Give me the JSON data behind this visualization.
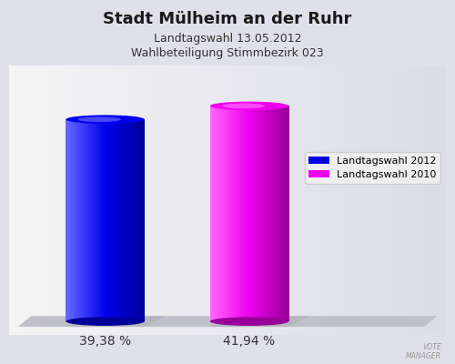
{
  "title": "Stadt Mülheim an der Ruhr",
  "subtitle1": "Landtagswahl 13.05.2012",
  "subtitle2": "Wahlbeteiligung Stimmbezirk 023",
  "values": [
    39.38,
    41.94
  ],
  "labels": [
    "39,38 %",
    "41,94 %"
  ],
  "bar_colors": [
    "#0000ee",
    "#ee00ee"
  ],
  "bar_dark_colors": [
    "#000099",
    "#990099"
  ],
  "bar_light_colors": [
    "#6666ff",
    "#ff66ff"
  ],
  "legend_labels": [
    "Landtagswahl 2012",
    "Landtagswahl 2010"
  ],
  "bg_top": "#dcdce8",
  "bg_bottom": "#f5f5f5",
  "floor_color": "#c0c0c8",
  "shadow_color": "#b0b0b8",
  "title_fontsize": 13,
  "subtitle_fontsize": 9,
  "label_fontsize": 10
}
